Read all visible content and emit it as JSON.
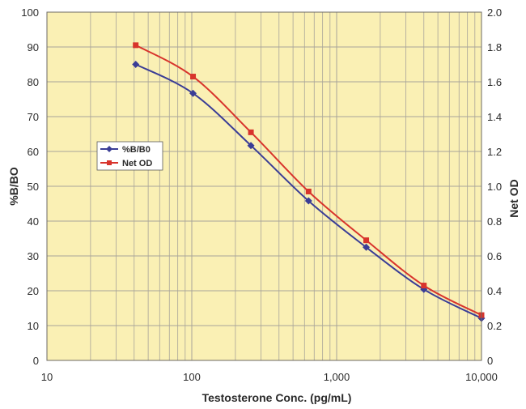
{
  "chart_data": {
    "type": "line",
    "title": "",
    "xlabel": "Testosterone Conc. (pg/mL)",
    "ylabel": "%B/BO",
    "y2label": "Net OD",
    "x_scale": "log",
    "xlim": [
      10,
      10000
    ],
    "ylim": [
      0,
      100
    ],
    "y2lim": [
      0,
      2.0
    ],
    "grid": true,
    "legend_position": "middle-left",
    "x_ticks": [
      10,
      100,
      1000,
      10000
    ],
    "x_tick_labels": [
      "10",
      "100",
      "1,000",
      "10,000"
    ],
    "y_ticks": [
      0,
      10,
      20,
      30,
      40,
      50,
      60,
      70,
      80,
      90,
      100
    ],
    "y_tick_labels": [
      "0",
      "10",
      "20",
      "30",
      "40",
      "50",
      "60",
      "70",
      "80",
      "90",
      "100"
    ],
    "y2_ticks": [
      0,
      0.2,
      0.4,
      0.6,
      0.8,
      1.0,
      1.2,
      1.4,
      1.6,
      1.8,
      2.0
    ],
    "y2_tick_labels": [
      "0",
      "0.2",
      "0.4",
      "0.6",
      "0.8",
      "1.0",
      "1.2",
      "1.4",
      "1.6",
      "1.8",
      "2.0"
    ],
    "x": [
      41,
      102,
      256,
      640,
      1600,
      4000,
      10000
    ],
    "series": [
      {
        "name": "%B/B0",
        "axis": "left",
        "marker": "diamond",
        "color": "#3a3d96",
        "values": [
          85,
          76.7,
          61.7,
          45.8,
          32.5,
          20.4,
          12.1
        ]
      },
      {
        "name": "Net OD",
        "axis": "right",
        "marker": "square",
        "color": "#d8342c",
        "values": [
          1.81,
          1.63,
          1.31,
          0.97,
          0.69,
          0.43,
          0.26
        ]
      }
    ],
    "plot_background": "#faf0b4",
    "grid_color": "#a8a49a"
  }
}
